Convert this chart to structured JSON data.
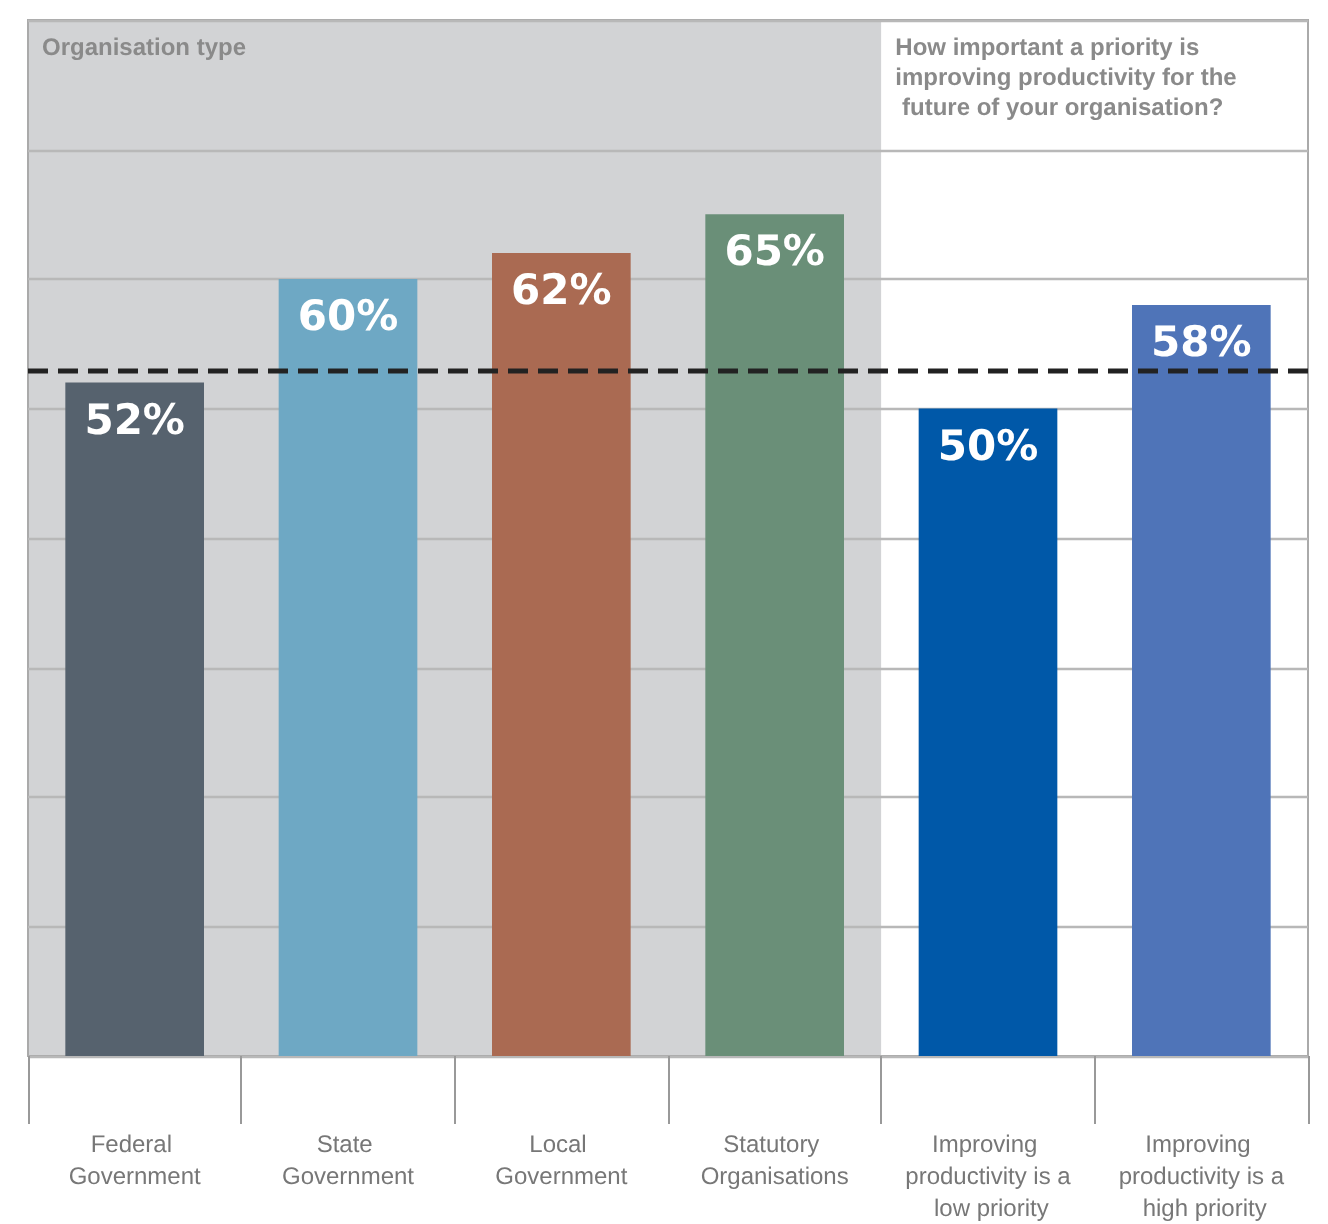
{
  "chart_data": {
    "type": "bar",
    "categories": [
      "Federal Government",
      "State Government",
      "Local Government",
      "Statutory Organisations",
      "Improving productivity is a low priority",
      "Improving productivity is a high priority"
    ],
    "values": [
      52,
      60,
      62,
      65,
      50,
      58
    ],
    "value_labels": [
      "52%",
      "60%",
      "62%",
      "65%",
      "50%",
      "58%"
    ],
    "colors": [
      "#56626e",
      "#6ea8c4",
      "#aa6a52",
      "#6a8f78",
      "#0058a8",
      "#4f74b8"
    ],
    "ylim": [
      0,
      80
    ],
    "yticks": [
      0,
      10,
      20,
      30,
      40,
      50,
      60,
      70,
      80
    ],
    "tick_labels": "x",
    "grid": "y",
    "ref_lines": [
      {
        "axis": "y",
        "value": 53,
        "color": "#222222",
        "line_style": "dashed"
      }
    ],
    "bands": [
      {
        "axis": "x",
        "from": "Federal Government",
        "to": "Statutory Organisations",
        "label": "Organisation type",
        "color": "#d2d3d5"
      },
      {
        "axis": "x",
        "from": "Improving productivity is a low priority",
        "to": "Improving productivity is a high priority",
        "label": "How important a priority is improving productivity for the future of your organisation?",
        "color": "#ffffff"
      }
    ]
  }
}
